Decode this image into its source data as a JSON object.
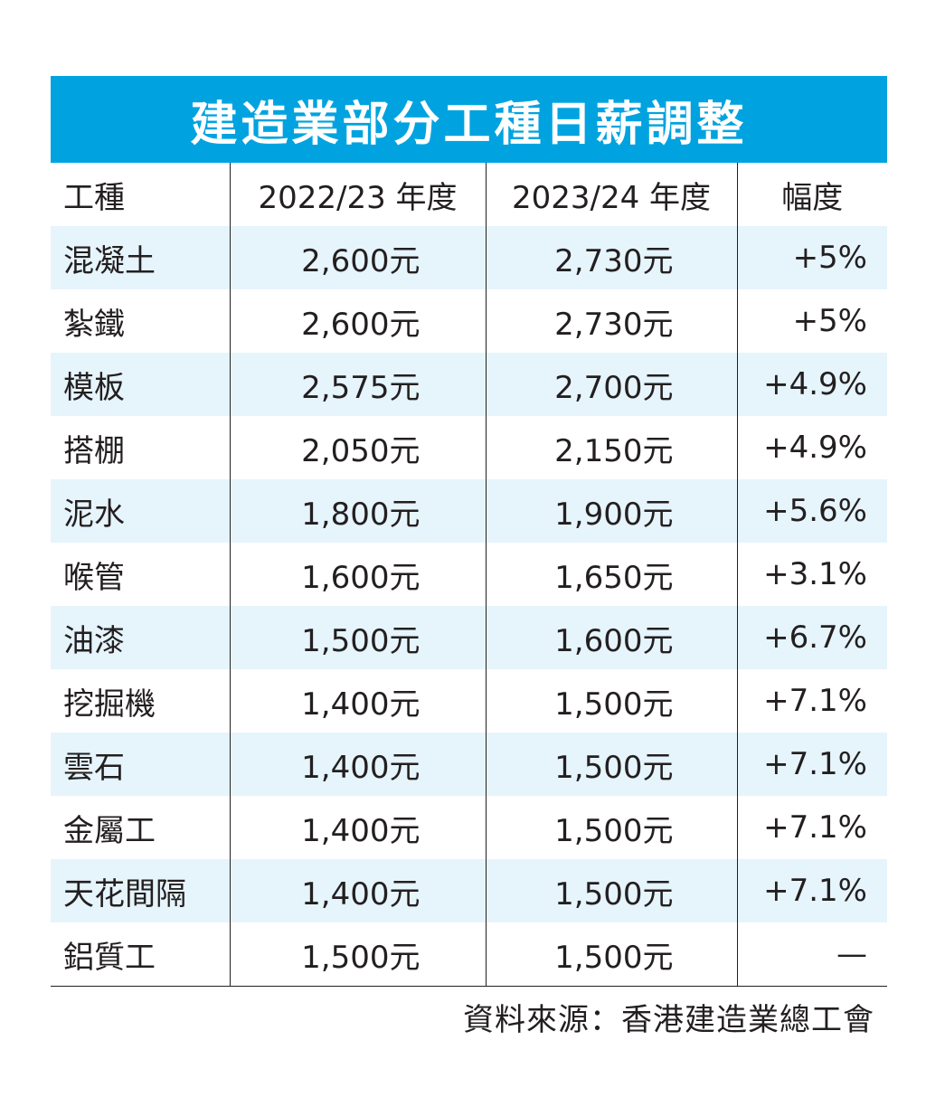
{
  "title": "建造業部分工種日薪調整",
  "source": "資料來源：香港建造業總工會",
  "chart_data": {
    "type": "table",
    "title": "建造業部分工種日薪調整",
    "columns": [
      "工種",
      "2022/23 年度",
      "2023/24 年度",
      "幅度"
    ],
    "rows": [
      {
        "trade": "混凝土",
        "y2223": "2,600元",
        "y2324": "2,730元",
        "change": "+5%"
      },
      {
        "trade": "紮鐵",
        "y2223": "2,600元",
        "y2324": "2,730元",
        "change": "+5%"
      },
      {
        "trade": "模板",
        "y2223": "2,575元",
        "y2324": "2,700元",
        "change": "+4.9%"
      },
      {
        "trade": "搭棚",
        "y2223": "2,050元",
        "y2324": "2,150元",
        "change": "+4.9%"
      },
      {
        "trade": "泥水",
        "y2223": "1,800元",
        "y2324": "1,900元",
        "change": "+5.6%"
      },
      {
        "trade": "喉管",
        "y2223": "1,600元",
        "y2324": "1,650元",
        "change": "+3.1%"
      },
      {
        "trade": "油漆",
        "y2223": "1,500元",
        "y2324": "1,600元",
        "change": "+6.7%"
      },
      {
        "trade": "挖掘機",
        "y2223": "1,400元",
        "y2324": "1,500元",
        "change": "+7.1%"
      },
      {
        "trade": "雲石",
        "y2223": "1,400元",
        "y2324": "1,500元",
        "change": "+7.1%"
      },
      {
        "trade": "金屬工",
        "y2223": "1,400元",
        "y2324": "1,500元",
        "change": "+7.1%"
      },
      {
        "trade": "天花間隔",
        "y2223": "1,400元",
        "y2324": "1,500元",
        "change": "+7.1%"
      },
      {
        "trade": "鋁質工",
        "y2223": "1,500元",
        "y2324": "1,500元",
        "change": "—"
      }
    ],
    "colors": {
      "header_bg": "#00a3e0",
      "stripe_bg": "#e6f4fc",
      "text": "#231f20"
    }
  }
}
